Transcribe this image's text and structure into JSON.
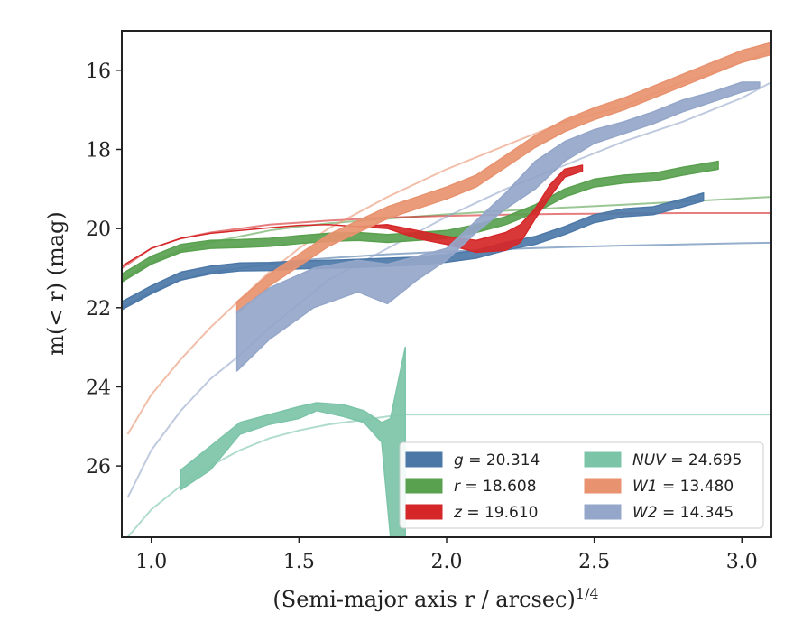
{
  "chart_data": {
    "type": "line",
    "xlabel": "(Semi-major axis r / arcsec)",
    "xlabel_sup": "1/4",
    "ylabel": "m(< r) (mag)",
    "xlim": [
      0.9,
      3.1
    ],
    "ylim": [
      27.8,
      15.0
    ],
    "y_inverted": true,
    "x_ticks": [
      1.0,
      1.5,
      2.0,
      2.5,
      3.0
    ],
    "x_tick_labels": [
      "1.0",
      "1.5",
      "2.0",
      "2.5",
      "3.0"
    ],
    "y_ticks": [
      16,
      18,
      20,
      22,
      24,
      26
    ],
    "y_tick_labels": [
      "16",
      "18",
      "20",
      "22",
      "24",
      "26"
    ],
    "grid": false,
    "legend_position": "lower-right",
    "series": [
      {
        "name": "g = 20.314",
        "label_var": "g",
        "label_val": "= 20.314",
        "color": "#4c78a8",
        "model": {
          "x": [
            0.9,
            1.0,
            1.1,
            1.2,
            1.3,
            1.4,
            1.5,
            1.6,
            1.8,
            2.0,
            2.2,
            2.4,
            2.6,
            2.8,
            3.0,
            3.1
          ],
          "y": [
            22.0,
            21.6,
            21.3,
            21.1,
            21.0,
            20.9,
            20.8,
            20.75,
            20.65,
            20.58,
            20.52,
            20.47,
            20.43,
            20.4,
            20.37,
            20.36
          ]
        },
        "band": {
          "x": [
            0.9,
            1.0,
            1.1,
            1.2,
            1.3,
            1.4,
            1.5,
            1.6,
            1.7,
            1.8,
            1.9,
            2.0,
            2.1,
            2.2,
            2.3,
            2.4,
            2.5,
            2.6,
            2.7,
            2.8,
            2.87
          ],
          "y": [
            21.95,
            21.55,
            21.2,
            21.05,
            20.97,
            20.96,
            20.92,
            20.9,
            20.88,
            20.85,
            20.82,
            20.75,
            20.65,
            20.45,
            20.3,
            20.05,
            19.75,
            19.6,
            19.55,
            19.35,
            19.2
          ],
          "half_width": 0.1
        }
      },
      {
        "name": "r = 18.608",
        "label_var": "r",
        "label_val": "= 18.608",
        "color": "#59a14f",
        "model": {
          "x": [
            0.9,
            1.0,
            1.1,
            1.2,
            1.3,
            1.4,
            1.5,
            1.6,
            1.8,
            2.0,
            2.2,
            2.4,
            2.6,
            2.8,
            3.0,
            3.1
          ],
          "y": [
            21.3,
            20.85,
            20.55,
            20.35,
            20.2,
            20.05,
            19.95,
            19.87,
            19.75,
            19.64,
            19.55,
            19.47,
            19.4,
            19.32,
            19.24,
            19.2
          ]
        },
        "band": {
          "x": [
            0.9,
            1.0,
            1.1,
            1.2,
            1.3,
            1.4,
            1.5,
            1.6,
            1.7,
            1.8,
            1.9,
            2.0,
            2.1,
            2.2,
            2.3,
            2.4,
            2.5,
            2.6,
            2.7,
            2.8,
            2.92
          ],
          "y": [
            21.25,
            20.8,
            20.5,
            20.4,
            20.38,
            20.35,
            20.28,
            20.22,
            20.2,
            20.25,
            20.2,
            20.15,
            20.0,
            19.8,
            19.5,
            19.1,
            18.85,
            18.75,
            18.7,
            18.55,
            18.4
          ],
          "half_width": 0.1
        }
      },
      {
        "name": "z = 19.610",
        "label_var": "z",
        "label_val": "= 19.610",
        "color": "#d62728",
        "model": {
          "x": [
            0.9,
            1.0,
            1.1,
            1.2,
            1.4,
            1.6,
            1.8,
            2.0,
            2.2,
            2.4,
            2.6,
            2.8,
            3.0,
            3.1
          ],
          "y": [
            21.0,
            20.5,
            20.25,
            20.1,
            19.9,
            19.8,
            19.72,
            19.68,
            19.65,
            19.63,
            19.62,
            19.61,
            19.61,
            19.61
          ]
        },
        "band": {
          "x": [
            0.9,
            1.0,
            1.1,
            1.2,
            1.3,
            1.4,
            1.5,
            1.6,
            1.7,
            1.8,
            1.9,
            2.0,
            2.1,
            2.2,
            2.25,
            2.3,
            2.35,
            2.4,
            2.46
          ],
          "y": [
            20.95,
            20.5,
            20.25,
            20.12,
            20.05,
            19.98,
            19.92,
            19.9,
            19.95,
            19.9,
            20.05,
            20.2,
            20.3,
            20.1,
            19.9,
            19.5,
            18.9,
            18.5,
            18.4
          ],
          "y_low": [
            20.95,
            20.5,
            20.25,
            20.12,
            20.05,
            19.98,
            19.92,
            19.9,
            19.95,
            20.0,
            20.25,
            20.4,
            20.6,
            20.55,
            20.35,
            19.75,
            19.2,
            18.7,
            18.55
          ],
          "half_width": 0.12
        }
      },
      {
        "name": "NUV = 24.695",
        "label_var": "NUV",
        "label_val": "= 24.695",
        "color": "#7cc4a8",
        "model": {
          "x": [
            0.92,
            1.0,
            1.1,
            1.2,
            1.3,
            1.4,
            1.5,
            1.6,
            1.7,
            1.8,
            1.85,
            1.86,
            2.0,
            2.5,
            3.0,
            3.1
          ],
          "y": [
            27.8,
            27.1,
            26.5,
            26.0,
            25.6,
            25.3,
            25.1,
            24.95,
            24.85,
            24.75,
            24.72,
            24.7,
            24.7,
            24.7,
            24.7,
            24.7
          ]
        },
        "band": {
          "x": [
            1.1,
            1.2,
            1.3,
            1.4,
            1.5,
            1.56,
            1.65,
            1.72,
            1.78,
            1.81,
            1.86
          ],
          "y_low": [
            26.6,
            26.1,
            25.2,
            24.95,
            24.8,
            24.6,
            24.75,
            24.9,
            25.4,
            27.8,
            27.8
          ],
          "y": [
            26.1,
            25.5,
            24.9,
            24.7,
            24.5,
            24.4,
            24.45,
            24.6,
            24.9,
            24.8,
            23.0
          ]
        }
      },
      {
        "name": "W1 = 13.480",
        "label_var": "W1",
        "label_val": "= 13.480",
        "color": "#e8926f",
        "model": {
          "x": [
            0.92,
            1.0,
            1.1,
            1.2,
            1.3,
            1.4,
            1.5,
            1.6,
            1.8,
            2.0,
            2.2,
            2.4,
            2.6,
            2.8,
            3.0,
            3.1
          ],
          "y": [
            25.2,
            24.2,
            23.3,
            22.5,
            21.8,
            21.1,
            20.5,
            20.0,
            19.2,
            18.5,
            17.9,
            17.3,
            16.9,
            16.3,
            15.8,
            15.5
          ]
        },
        "band": {
          "x": [
            1.29,
            1.4,
            1.5,
            1.6,
            1.7,
            1.8,
            1.9,
            2.0,
            2.1,
            2.2,
            2.3,
            2.4,
            2.5,
            2.6,
            2.7,
            2.8,
            2.9,
            3.0,
            3.1
          ],
          "y": [
            22.0,
            21.3,
            20.8,
            20.3,
            19.95,
            19.6,
            19.35,
            19.1,
            18.8,
            18.3,
            17.8,
            17.4,
            17.1,
            16.85,
            16.55,
            16.25,
            15.95,
            15.65,
            15.45
          ],
          "half_width": 0.15
        }
      },
      {
        "name": "W2 = 14.345",
        "label_var": "W2",
        "label_val": "= 14.345",
        "color": "#94a6c9",
        "model": {
          "x": [
            0.92,
            1.0,
            1.1,
            1.2,
            1.3,
            1.4,
            1.5,
            1.6,
            1.8,
            2.0,
            2.2,
            2.4,
            2.6,
            2.8,
            3.0,
            3.1
          ],
          "y": [
            26.8,
            25.6,
            24.6,
            23.8,
            23.2,
            22.5,
            21.9,
            21.3,
            20.5,
            19.7,
            19.0,
            18.4,
            17.8,
            17.3,
            16.7,
            16.3
          ]
        },
        "band": {
          "x": [
            1.29,
            1.4,
            1.55,
            1.7,
            1.8,
            1.9,
            2.0,
            2.1,
            2.2,
            2.3,
            2.4,
            2.5,
            2.6,
            2.7,
            2.8,
            2.9,
            3.0,
            3.06
          ],
          "y_low": [
            23.6,
            22.8,
            22.0,
            21.6,
            21.9,
            21.3,
            20.8,
            20.1,
            19.5,
            19.0,
            18.3,
            17.85,
            17.6,
            17.35,
            17.05,
            16.8,
            16.55,
            16.45
          ],
          "y": [
            22.1,
            21.5,
            21.0,
            20.8,
            20.9,
            20.7,
            20.5,
            19.8,
            19.1,
            18.3,
            17.8,
            17.5,
            17.3,
            17.05,
            16.75,
            16.55,
            16.3,
            16.3
          ]
        }
      }
    ]
  }
}
